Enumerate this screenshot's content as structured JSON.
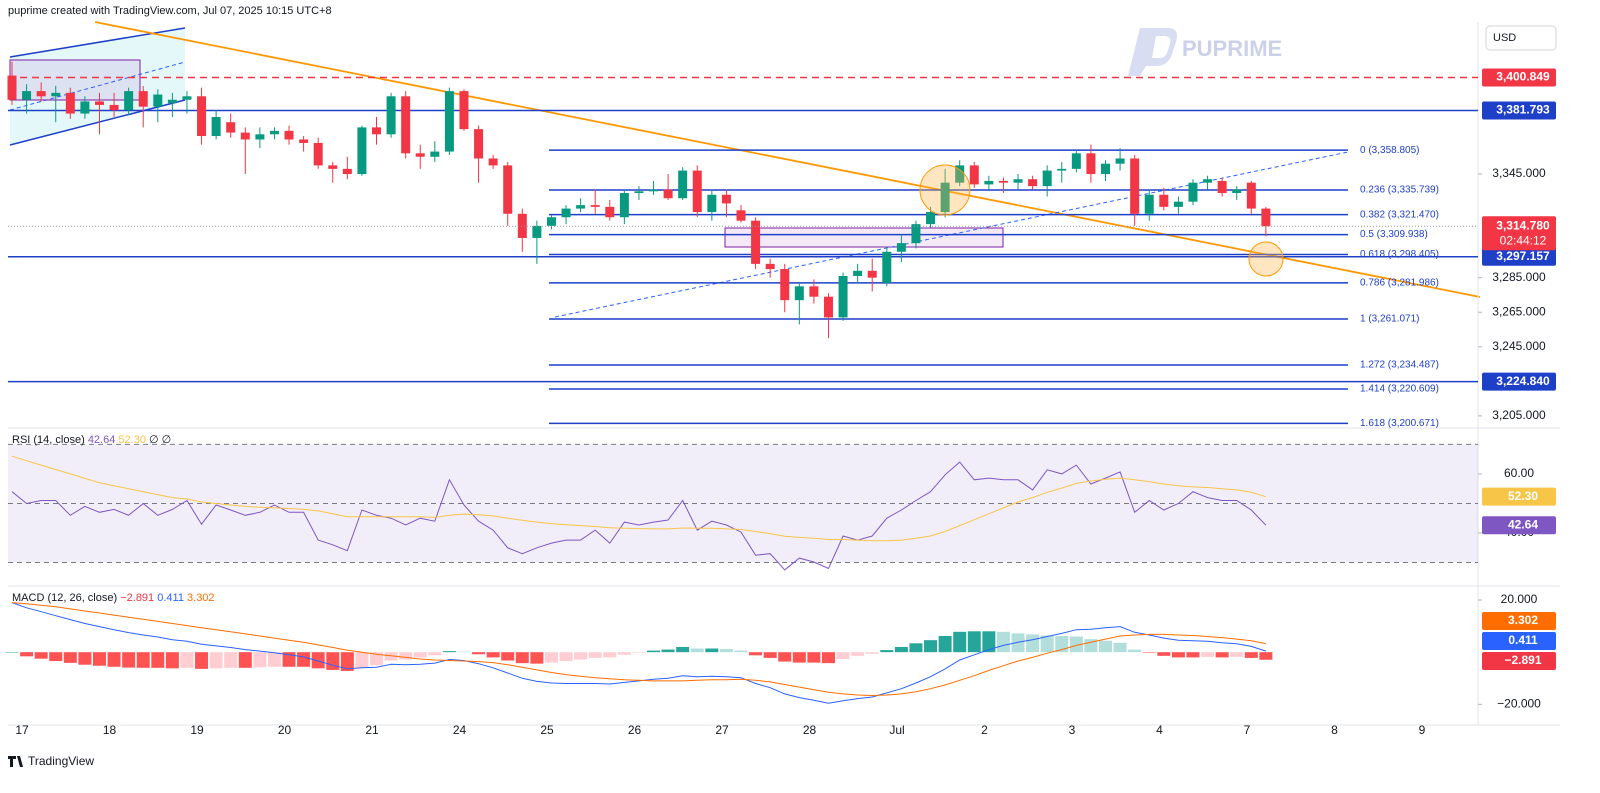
{
  "header": {
    "credit": "puprime created with TradingView.com, Jul 07, 2025 10:15 UTC+8"
  },
  "currency": "USD",
  "watermark": "PUPRIME",
  "footer": "TradingView",
  "chart_data": [
    {
      "type": "candlestick",
      "up_color": "#089981",
      "down_color": "#f23645",
      "xtick_labels": [
        "17",
        "18",
        "19",
        "20",
        "21",
        "24",
        "25",
        "26",
        "27",
        "28",
        "Jul",
        "2",
        "3",
        "4",
        "7",
        "8",
        "9"
      ],
      "candles": [
        [
          3402,
          3410,
          3385,
          3388
        ],
        [
          3388,
          3397,
          3380,
          3393
        ],
        [
          3393,
          3398,
          3387,
          3390
        ],
        [
          3390,
          3396,
          3375,
          3392
        ],
        [
          3392,
          3395,
          3377,
          3380
        ],
        [
          3380,
          3390,
          3377,
          3387
        ],
        [
          3387,
          3392,
          3368,
          3385
        ],
        [
          3385,
          3392,
          3378,
          3382
        ],
        [
          3382,
          3395,
          3379,
          3393
        ],
        [
          3393,
          3396,
          3372,
          3384
        ],
        [
          3384,
          3394,
          3375,
          3391
        ],
        [
          3386,
          3392,
          3378,
          3388
        ],
        [
          3388,
          3393,
          3380,
          3390
        ],
        [
          3390,
          3395,
          3362,
          3367
        ],
        [
          3367,
          3382,
          3365,
          3378
        ],
        [
          3375,
          3380,
          3366,
          3369
        ],
        [
          3369,
          3372,
          3345,
          3365
        ],
        [
          3365,
          3372,
          3360,
          3368
        ],
        [
          3368,
          3372,
          3365,
          3370
        ],
        [
          3370,
          3373,
          3362,
          3365
        ],
        [
          3365,
          3367,
          3358,
          3363
        ],
        [
          3363,
          3366,
          3348,
          3350
        ],
        [
          3350,
          3352,
          3340,
          3348
        ],
        [
          3348,
          3355,
          3342,
          3345
        ],
        [
          3345,
          3373,
          3344,
          3372
        ],
        [
          3372,
          3378,
          3362,
          3368
        ],
        [
          3368,
          3392,
          3366,
          3390
        ],
        [
          3390,
          3393,
          3354,
          3357
        ],
        [
          3357,
          3362,
          3348,
          3355
        ],
        [
          3355,
          3364,
          3352,
          3358
        ],
        [
          3358,
          3395,
          3356,
          3393
        ],
        [
          3393,
          3394,
          3370,
          3371
        ],
        [
          3371,
          3373,
          3340,
          3354
        ],
        [
          3354,
          3356,
          3348,
          3350
        ],
        [
          3350,
          3352,
          3315,
          3322
        ],
        [
          3322,
          3325,
          3300,
          3308
        ],
        [
          3308,
          3318,
          3293,
          3315
        ],
        [
          3315,
          3321,
          3313,
          3320
        ],
        [
          3320,
          3327,
          3316,
          3325
        ],
        [
          3325,
          3331,
          3323,
          3327
        ],
        [
          3327,
          3336,
          3322,
          3326
        ],
        [
          3326,
          3330,
          3318,
          3320
        ],
        [
          3320,
          3336,
          3316,
          3334
        ],
        [
          3334,
          3338,
          3330,
          3335
        ],
        [
          3335,
          3341,
          3333,
          3336
        ],
        [
          3336,
          3345,
          3330,
          3331
        ],
        [
          3331,
          3349,
          3330,
          3347
        ],
        [
          3347,
          3350,
          3320,
          3323
        ],
        [
          3323,
          3336,
          3318,
          3333
        ],
        [
          3333,
          3336,
          3320,
          3328
        ],
        [
          3324,
          3327,
          3317,
          3318
        ],
        [
          3318,
          3320,
          3290,
          3293
        ],
        [
          3293,
          3296,
          3285,
          3290
        ],
        [
          3290,
          3293,
          3265,
          3272
        ],
        [
          3272,
          3282,
          3258,
          3280
        ],
        [
          3280,
          3284,
          3270,
          3274
        ],
        [
          3274,
          3276,
          3250,
          3262
        ],
        [
          3262,
          3288,
          3260,
          3286
        ],
        [
          3286,
          3293,
          3282,
          3289
        ],
        [
          3289,
          3296,
          3277,
          3285
        ],
        [
          3282,
          3303,
          3280,
          3300
        ],
        [
          3300,
          3310,
          3294,
          3305
        ],
        [
          3305,
          3318,
          3302,
          3316
        ],
        [
          3316,
          3326,
          3314,
          3323
        ],
        [
          3323,
          3348,
          3320,
          3340
        ],
        [
          3340,
          3353,
          3338,
          3350
        ],
        [
          3350,
          3352,
          3337,
          3339
        ],
        [
          3339,
          3344,
          3336,
          3341
        ],
        [
          3341,
          3343,
          3334,
          3340
        ],
        [
          3340,
          3345,
          3336,
          3342
        ],
        [
          3342,
          3344,
          3336,
          3338
        ],
        [
          3338,
          3350,
          3332,
          3347
        ],
        [
          3347,
          3352,
          3340,
          3348
        ],
        [
          3348,
          3359,
          3346,
          3357
        ],
        [
          3357,
          3362,
          3340,
          3345
        ],
        [
          3345,
          3353,
          3341,
          3351
        ],
        [
          3351,
          3360,
          3347,
          3354
        ],
        [
          3354,
          3356,
          3315,
          3322
        ],
        [
          3322,
          3336,
          3318,
          3333
        ],
        [
          3333,
          3337,
          3324,
          3326
        ],
        [
          3326,
          3332,
          3322,
          3329
        ],
        [
          3329,
          3342,
          3327,
          3340
        ],
        [
          3340,
          3344,
          3336,
          3342
        ],
        [
          3341,
          3343,
          3332,
          3334
        ],
        [
          3334,
          3338,
          3330,
          3336
        ],
        [
          3340,
          3341,
          3322,
          3325
        ],
        [
          3325,
          3326,
          3309,
          3314.78
        ]
      ],
      "ylim": [
        3198,
        3433
      ],
      "yticks": [
        {
          "value": 3345,
          "label": "3,345.000"
        },
        {
          "value": 3285,
          "label": "3,285.000"
        },
        {
          "value": 3265,
          "label": "3,265.000"
        },
        {
          "value": 3245,
          "label": "3,245.000"
        },
        {
          "value": 3205,
          "label": "3,205.000"
        }
      ],
      "levels": [
        {
          "value": 3400.849,
          "label": "3,400.849",
          "color": "#f23645",
          "style": "dashed"
        },
        {
          "value": 3381.793,
          "label": "3,381.793",
          "color": "#1e3fc8",
          "style": "solid"
        },
        {
          "value": 3297.157,
          "label": "3,297.157",
          "color": "#1e3fc8",
          "style": "solid"
        },
        {
          "value": 3224.84,
          "label": "3,224.840",
          "color": "#1e3fc8",
          "style": "solid"
        }
      ],
      "last_price": {
        "value": 3314.78,
        "label": "3,314.780",
        "countdown": "02:44:12",
        "color": "#f23645"
      },
      "fib_color": "#1e3fc8",
      "fib": [
        {
          "value": 3358.805,
          "label": "0 (3,358.805)"
        },
        {
          "value": 3335.739,
          "label": "0.236 (3,335.739)"
        },
        {
          "value": 3321.47,
          "label": "0.382 (3,321.470)"
        },
        {
          "value": 3309.938,
          "label": "0.5 (3,309.938)"
        },
        {
          "value": 3298.405,
          "label": "0.618 (3,298.405)"
        },
        {
          "value": 3281.986,
          "label": "0.786 (3,281.986)"
        },
        {
          "value": 3261.071,
          "label": "1 (3,261.071)"
        },
        {
          "value": 3234.487,
          "label": "1.272 (3,234.487)"
        },
        {
          "value": 3220.609,
          "label": "1.414 (3,220.609)"
        },
        {
          "value": 3200.671,
          "label": "1.618 (3,200.671)"
        }
      ]
    },
    {
      "type": "line",
      "title": "RSI (14, close)",
      "nulls": "∅ ∅",
      "ylim": [
        22.4,
        74.2
      ],
      "yticks": [
        {
          "value": 60,
          "label": "60.00"
        },
        {
          "value": 40,
          "label": "40.00"
        }
      ],
      "bands": [
        70,
        50,
        30
      ],
      "band_fill": "#7e57c2",
      "series": [
        {
          "color": "#7e57c2",
          "last_label": "42.64",
          "values": [
            54,
            50,
            51,
            51,
            46,
            49,
            47,
            48,
            46,
            50,
            46,
            48,
            51,
            43,
            49.5,
            47.8,
            46,
            47,
            49.5,
            47,
            47,
            37.6,
            36,
            34,
            47.8,
            46,
            45,
            42.7,
            45,
            44,
            58,
            49.5,
            44,
            41,
            35,
            33,
            35,
            36.6,
            37.6,
            37.6,
            41,
            36.6,
            43.7,
            42.7,
            43.7,
            44.4,
            51,
            41,
            44,
            42.7,
            40.3,
            32.5,
            33,
            27.5,
            31.5,
            30.2,
            28,
            39,
            37.6,
            39,
            45,
            47.8,
            51,
            54,
            59.7,
            64,
            58,
            58.6,
            58,
            58,
            54.6,
            61.4,
            60,
            63,
            56.6,
            58.6,
            60.7,
            47,
            51,
            47.8,
            50,
            54,
            52,
            51,
            51,
            47.8,
            42.64
          ]
        },
        {
          "color": "#f7c548",
          "last_label": "52.30",
          "values": [
            66,
            64.5,
            63,
            61.5,
            60,
            58.5,
            57,
            56,
            55,
            54,
            53,
            52,
            51.5,
            50.5,
            50,
            49.5,
            49,
            48.7,
            48.5,
            48.3,
            48,
            47.5,
            46.5,
            45.5,
            45.5,
            45.5,
            45.5,
            45.5,
            45.5,
            45.3,
            46,
            46.4,
            46.2,
            45.8,
            45,
            44.3,
            43.7,
            43.2,
            42.8,
            42.5,
            42.2,
            41.8,
            41.6,
            41.5,
            41.4,
            41.4,
            41.7,
            41.6,
            41.6,
            41.4,
            41.2,
            40.5,
            39.8,
            38.9,
            38.5,
            38.2,
            37.8,
            37.8,
            37.6,
            37.4,
            37.4,
            37.6,
            38.2,
            39,
            40.5,
            42.5,
            44.5,
            46.5,
            48.5,
            50.5,
            52,
            53.8,
            55.2,
            56.8,
            57.6,
            58.2,
            58.6,
            58,
            57.4,
            56.6,
            56,
            55.6,
            55.4,
            55,
            54.6,
            53.8,
            52.3
          ]
        }
      ]
    },
    {
      "type": "macd",
      "title": "MACD (12, 26, close)",
      "ylim": [
        -26,
        24.6
      ],
      "yticks": [
        {
          "value": 20,
          "label": "20.000"
        },
        {
          "value": -20,
          "label": "−20.000"
        }
      ],
      "hist_colors": [
        "#26a69a",
        "#b2dfdb",
        "#ff5252",
        "#ffcdd2"
      ],
      "histogram": {
        "last_label": "−2.891",
        "color": "#f23645",
        "values": [
          0,
          -1.6,
          -2.5,
          -3.4,
          -4.1,
          -4.8,
          -5.2,
          -5.6,
          -5.9,
          -6,
          -6,
          -6.2,
          -6,
          -6.4,
          -6.2,
          -6,
          -6,
          -5.8,
          -5.6,
          -5.6,
          -5.6,
          -6.2,
          -6.8,
          -7.2,
          -6,
          -5,
          -3.2,
          -2.8,
          -2,
          -1.2,
          0.4,
          0.2,
          -0.8,
          -2,
          -3.2,
          -4.2,
          -4.4,
          -4,
          -3.4,
          -2.8,
          -2.2,
          -2,
          -1,
          -0.2,
          0.6,
          1,
          2,
          1.4,
          1.4,
          1.2,
          0.6,
          -1.2,
          -2.2,
          -3.6,
          -4,
          -4,
          -4.2,
          -2.6,
          -1.4,
          -0.6,
          0.8,
          2,
          3.4,
          4.6,
          6.2,
          7.8,
          8,
          8,
          7.8,
          7.2,
          6.8,
          6.4,
          6.2,
          6,
          5,
          4.4,
          3.6,
          1,
          -0.2,
          -1.4,
          -2,
          -2,
          -1.8,
          -2,
          -1.8,
          -2.2,
          -2.891
        ]
      },
      "series": [
        {
          "color": "#2962ff",
          "last_label": "0.411",
          "values": [
            19,
            17,
            15.5,
            14,
            12.5,
            11,
            9.8,
            8.6,
            7.5,
            6.6,
            5.8,
            4.8,
            4.2,
            3,
            2.4,
            1.8,
            1,
            0.4,
            -0.2,
            -1,
            -1.8,
            -3.4,
            -5,
            -6.4,
            -6,
            -5.8,
            -4.6,
            -4.8,
            -4.6,
            -4.2,
            -2.8,
            -3.2,
            -4.4,
            -6,
            -8,
            -10,
            -11.2,
            -11.8,
            -12,
            -12,
            -12,
            -12.2,
            -11.6,
            -11,
            -10.4,
            -10,
            -9,
            -9.4,
            -9.2,
            -9.4,
            -9.8,
            -12,
            -13.6,
            -16,
            -17.4,
            -18.4,
            -19.6,
            -18.6,
            -17.8,
            -17.2,
            -15.6,
            -14,
            -11.8,
            -9.4,
            -6.4,
            -3,
            -1,
            1,
            2.6,
            3.8,
            4.8,
            6,
            7.2,
            8.6,
            8.8,
            9.4,
            9.8,
            7.6,
            6.6,
            5.4,
            4.6,
            4.4,
            4.2,
            3.6,
            3.2,
            2.2,
            0.411
          ]
        },
        {
          "color": "#ff6d00",
          "last_label": "3.302",
          "values": [
            19,
            18.6,
            18,
            17.4,
            16.6,
            15.8,
            15,
            14.2,
            13.4,
            12.6,
            11.8,
            11,
            10.2,
            9.4,
            8.6,
            7.8,
            7,
            6.2,
            5.4,
            4.6,
            3.8,
            2.8,
            1.8,
            0.8,
            0,
            -0.8,
            -1.4,
            -2,
            -2.6,
            -3,
            -3.2,
            -3.4,
            -3.6,
            -4,
            -4.8,
            -5.8,
            -6.8,
            -7.8,
            -8.6,
            -9.2,
            -9.8,
            -10.2,
            -10.6,
            -10.8,
            -11,
            -11,
            -11,
            -10.8,
            -10.6,
            -10.6,
            -10.4,
            -10.8,
            -11.4,
            -12.4,
            -13.4,
            -14.4,
            -15.4,
            -16,
            -16.4,
            -16.6,
            -16.4,
            -16,
            -15.2,
            -14,
            -12.6,
            -10.8,
            -9,
            -7,
            -5.2,
            -3.4,
            -2,
            -0.4,
            1,
            2.6,
            3.8,
            5,
            6.2,
            6.6,
            6.8,
            6.8,
            6.6,
            6.4,
            6,
            5.6,
            5,
            4.4,
            3.302
          ]
        }
      ]
    }
  ]
}
